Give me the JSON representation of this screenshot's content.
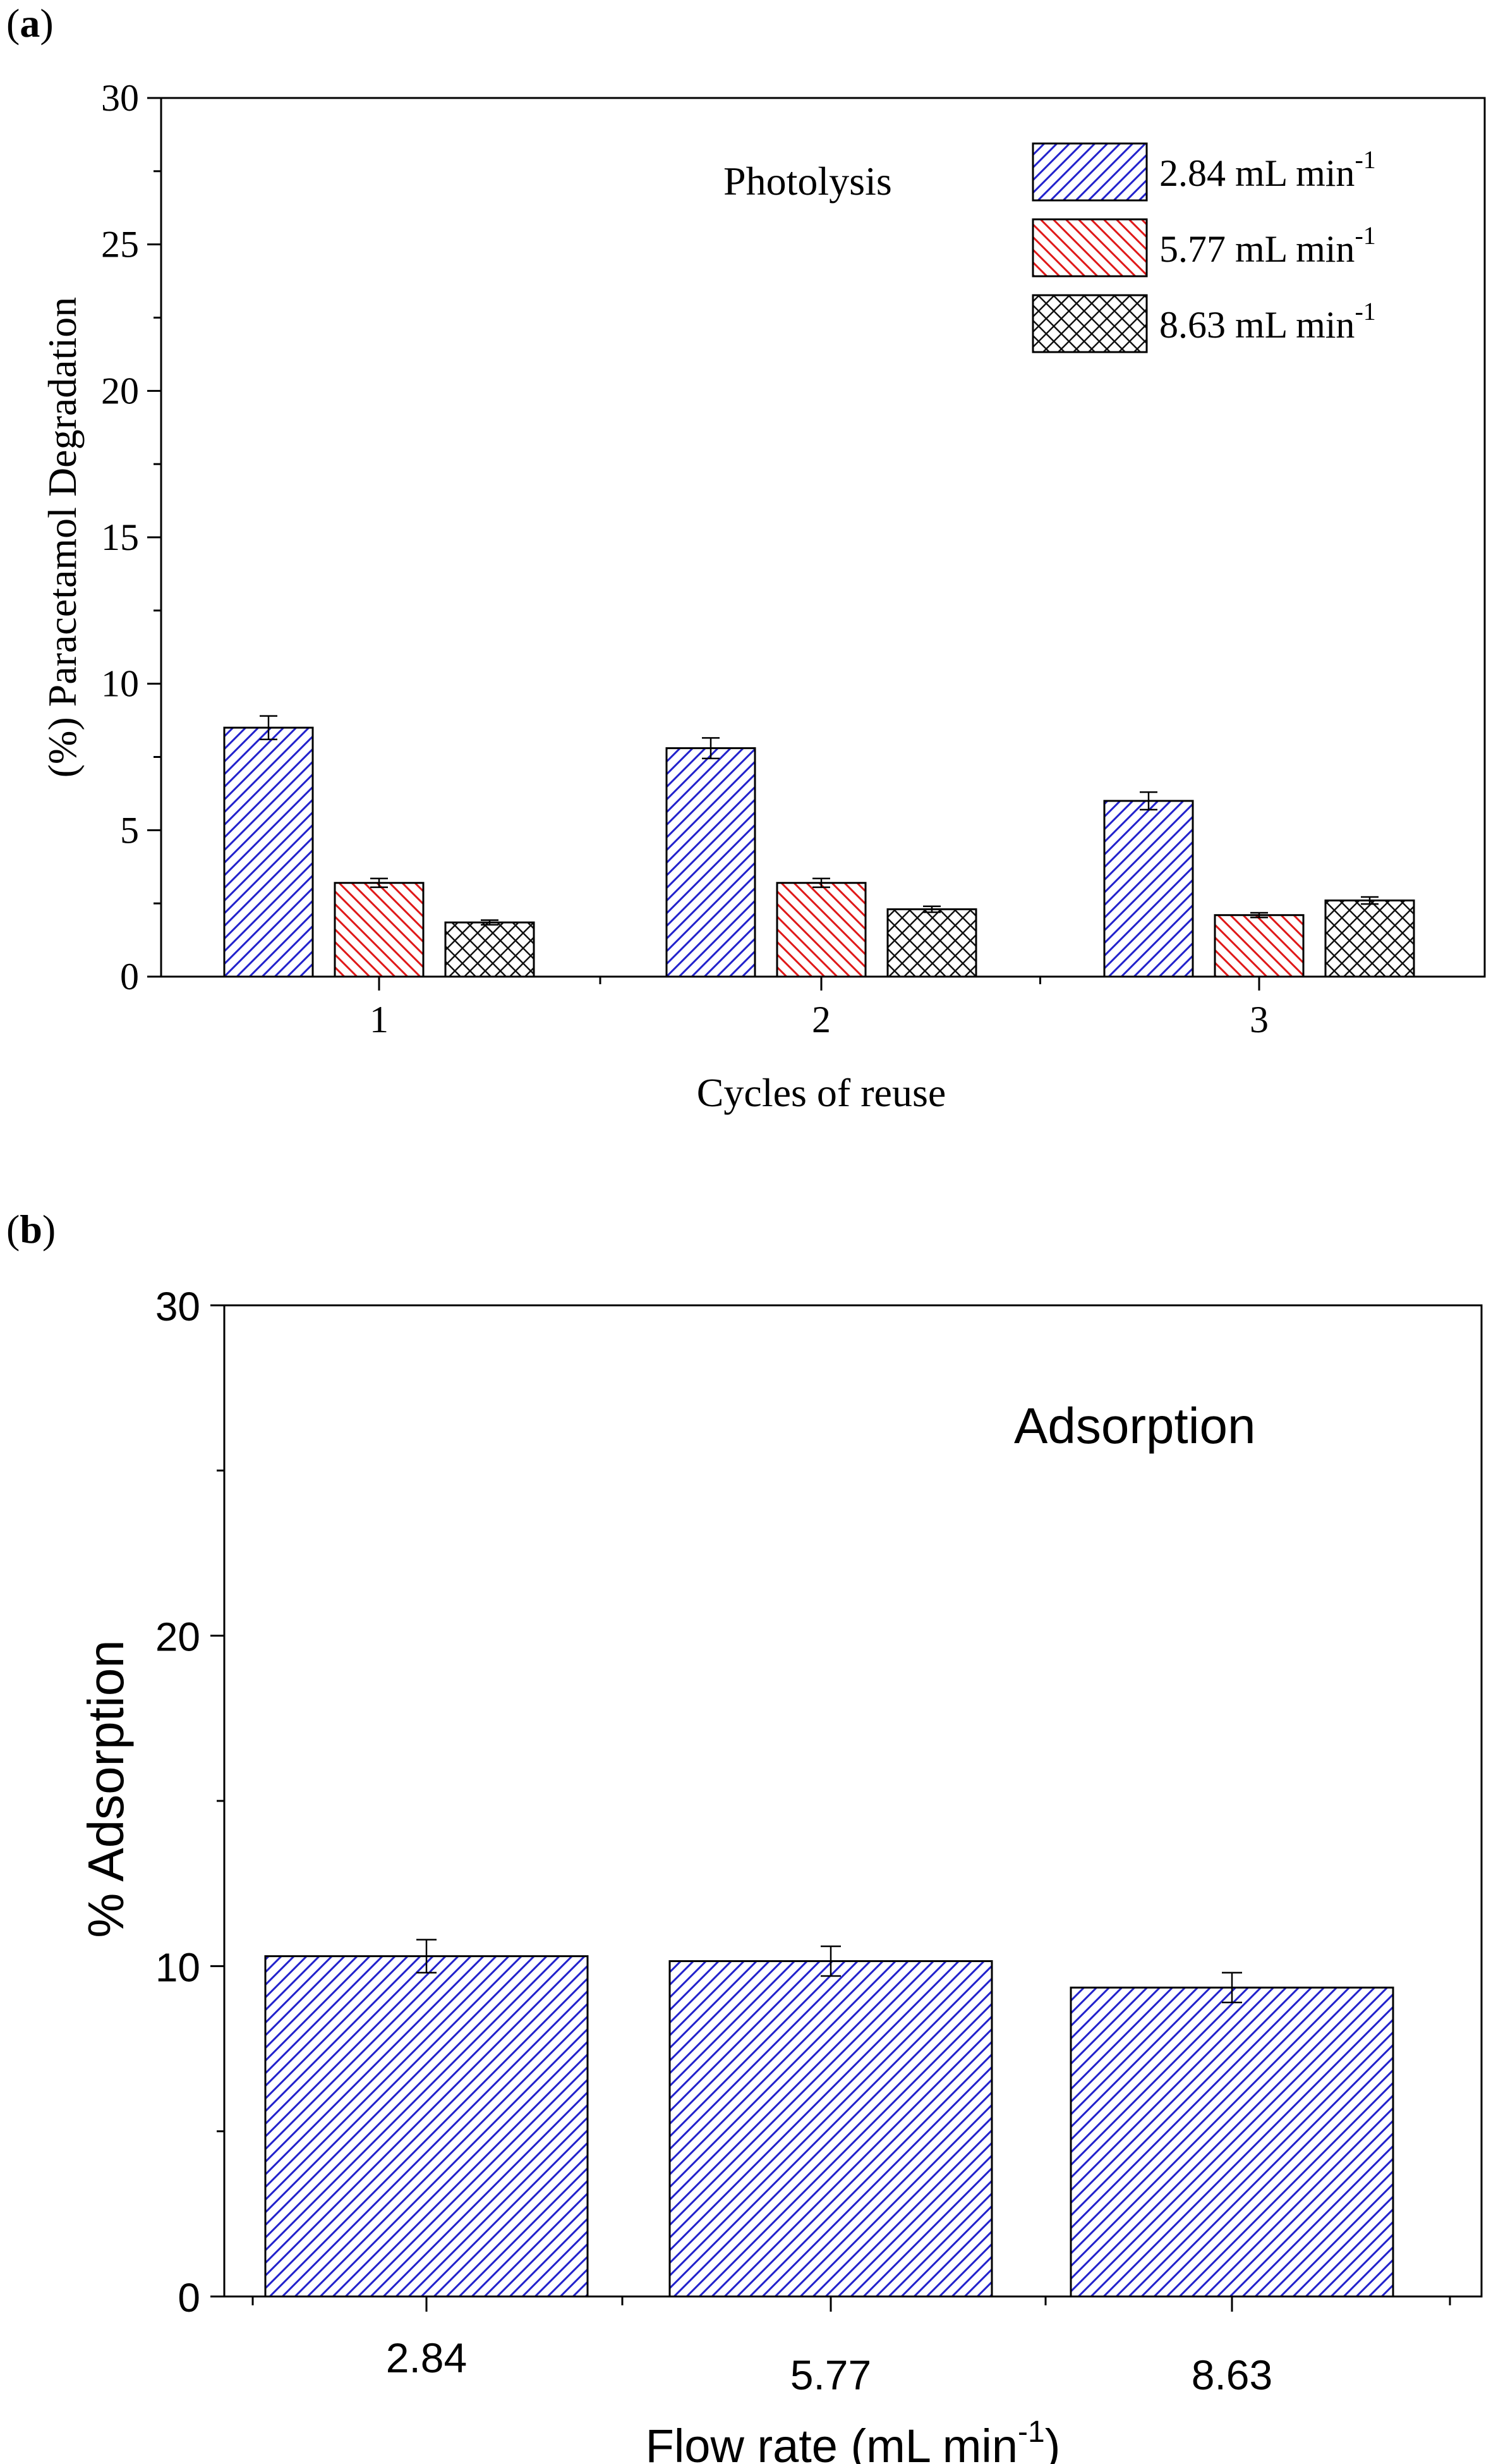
{
  "panels": {
    "a": {
      "label": "a"
    },
    "b": {
      "label": "b"
    }
  },
  "colors": {
    "blue": "#2222cc",
    "red": "#e01818",
    "black": "#111111",
    "axis": "#000000"
  },
  "chart_data": [
    {
      "type": "bar",
      "panel": "a",
      "title": "",
      "annotation": "Photolysis",
      "xlabel": "Cycles of reuse",
      "ylabel": "(%) Paracetamol Degradation",
      "ylim": [
        0,
        30
      ],
      "yticks": [
        0,
        5,
        10,
        15,
        20,
        25,
        30
      ],
      "categories": [
        "1",
        "2",
        "3"
      ],
      "legend_position": "top-right",
      "series": [
        {
          "name": "2.84 mL min",
          "unit_sup": "-1",
          "pattern": "hatch-forward",
          "color": "#2222cc",
          "values": [
            8.5,
            7.8,
            6.0
          ],
          "errors": [
            0.4,
            0.35,
            0.3
          ]
        },
        {
          "name": "5.77 mL min",
          "unit_sup": "-1",
          "pattern": "hatch-backward",
          "color": "#e01818",
          "values": [
            3.2,
            3.2,
            2.1
          ],
          "errors": [
            0.15,
            0.15,
            0.08
          ]
        },
        {
          "name": "8.63 mL min",
          "unit_sup": "-1",
          "pattern": "crosshatch",
          "color": "#111111",
          "values": [
            1.85,
            2.3,
            2.6
          ],
          "errors": [
            0.08,
            0.1,
            0.12
          ]
        }
      ]
    },
    {
      "type": "bar",
      "panel": "b",
      "title": "",
      "annotation": "Adsorption",
      "xlabel": "Flow rate (mL min",
      "xlabel_sup": "-1",
      "xlabel_end": ")",
      "ylabel": "% Adsorption",
      "ylim": [
        0,
        30
      ],
      "yticks": [
        0,
        10,
        20,
        30
      ],
      "categories": [
        "2.84",
        "5.77",
        "8.63"
      ],
      "series": [
        {
          "name": "Adsorption",
          "pattern": "hatch-forward",
          "color": "#2222cc",
          "values": [
            10.3,
            10.15,
            9.35
          ],
          "errors": [
            0.5,
            0.45,
            0.45
          ]
        }
      ]
    }
  ]
}
